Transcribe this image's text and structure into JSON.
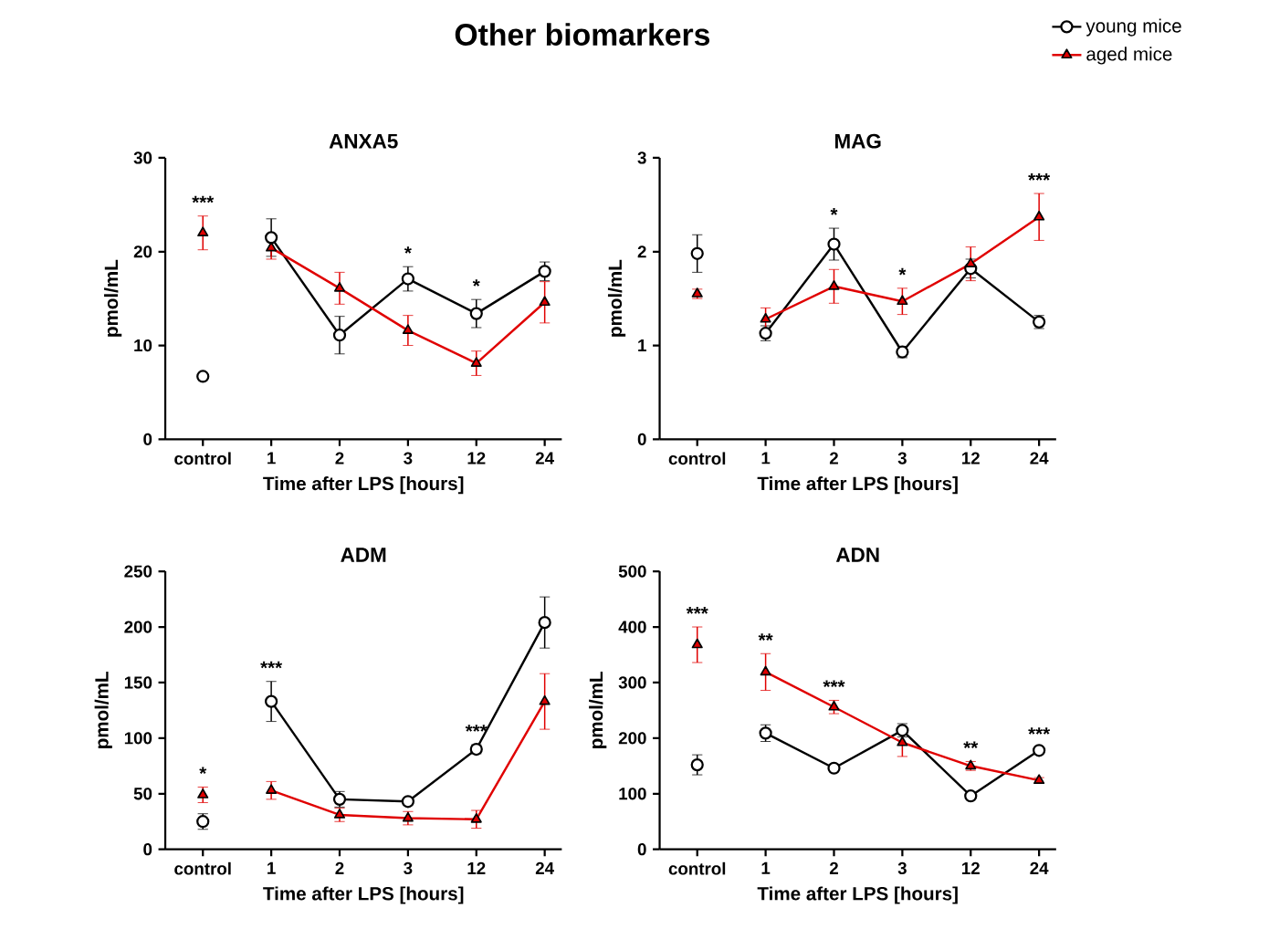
{
  "chart_data": [
    {
      "type": "line",
      "title": "Other biomarkers",
      "subtitle": "ANXA5",
      "xlabel": "Time after LPS [hours]",
      "ylabel": "pmol/mL",
      "categories": [
        "control",
        "1",
        "2",
        "3",
        "12",
        "24"
      ],
      "ylim": [
        0,
        30
      ],
      "yticks": [
        0,
        10,
        20,
        30
      ],
      "legend": "top right",
      "series": [
        {
          "name": "young mice",
          "color": "#000000",
          "marker": "circle",
          "values": [
            null,
            21.5,
            11.1,
            17.1,
            13.4,
            17.9
          ],
          "errors": [
            null,
            2,
            2,
            1.3,
            1.5,
            1
          ]
        },
        {
          "name": "aged mice",
          "color": "#e00000",
          "marker": "triangle",
          "values": [
            null,
            20.4,
            16.1,
            11.6,
            8.1,
            14.6
          ],
          "errors": [
            null,
            1.2,
            1.7,
            1.6,
            1.3,
            2.2
          ]
        },
        {
          "type": "scatter",
          "color": "#000000",
          "marker": "circle",
          "x": [
            "control"
          ],
          "values": [
            6.7
          ]
        },
        {
          "type": "scatter",
          "color": "#e00000",
          "marker": "triangle",
          "x": [
            "control"
          ],
          "values": [
            22
          ],
          "errors": [
            1.8
          ]
        }
      ],
      "annotations": [
        {
          "text": "***",
          "x": "control",
          "y": 22
        },
        {
          "text": "*",
          "x": "3",
          "y": 17.1
        },
        {
          "text": "*",
          "x": "12",
          "y": 13.4
        }
      ]
    },
    {
      "type": "line",
      "title": "MAG",
      "xlabel": "Time after LPS [hours]",
      "ylabel": "pmol/mL",
      "categories": [
        "control",
        "1",
        "2",
        "3",
        "12",
        "24"
      ],
      "ylim": [
        0,
        3
      ],
      "yticks": [
        0,
        1,
        2,
        3
      ],
      "series": [
        {
          "color": "#000000",
          "marker": "circle",
          "values": [
            null,
            1.13,
            2.08,
            0.93,
            1.82,
            1.25
          ],
          "errors": [
            null,
            0.08,
            0.17,
            0.06,
            0.1,
            0.07
          ]
        },
        {
          "color": "#e00000",
          "marker": "triangle",
          "values": [
            null,
            1.28,
            1.63,
            1.47,
            1.87,
            2.37
          ],
          "errors": [
            null,
            0.12,
            0.18,
            0.14,
            0.18,
            0.25
          ]
        },
        {
          "type": "scatter",
          "color": "#000000",
          "marker": "circle",
          "x": [
            "control"
          ],
          "values": [
            1.98
          ],
          "errors": [
            0.2
          ]
        },
        {
          "type": "scatter",
          "color": "#e00000",
          "marker": "triangle",
          "x": [
            "control"
          ],
          "values": [
            1.55
          ],
          "errors": [
            0.05
          ]
        }
      ],
      "annotations": [
        {
          "text": "*",
          "x": "2",
          "y": 2.08
        },
        {
          "text": "*",
          "x": "3",
          "y": 1.47
        },
        {
          "text": "***",
          "x": "24",
          "y": 2.37
        }
      ]
    },
    {
      "type": "line",
      "title": "ADM",
      "xlabel": "Time after LPS [hours]",
      "ylabel": "pmol/mL",
      "categories": [
        "control",
        "1",
        "2",
        "3",
        "12",
        "24"
      ],
      "ylim": [
        0,
        250
      ],
      "yticks": [
        0,
        50,
        100,
        150,
        200,
        250
      ],
      "series": [
        {
          "color": "#000000",
          "marker": "circle",
          "values": [
            null,
            133,
            45,
            43,
            90,
            204
          ],
          "errors": [
            null,
            18,
            7,
            3,
            4,
            23
          ]
        },
        {
          "color": "#e00000",
          "marker": "triangle",
          "values": [
            null,
            53,
            31,
            28,
            27,
            133
          ],
          "errors": [
            null,
            8,
            6,
            6,
            8,
            25
          ]
        },
        {
          "type": "scatter",
          "color": "#000000",
          "marker": "circle",
          "x": [
            "control"
          ],
          "values": [
            25
          ],
          "errors": [
            7
          ]
        },
        {
          "type": "scatter",
          "color": "#e00000",
          "marker": "triangle",
          "x": [
            "control"
          ],
          "values": [
            49
          ],
          "errors": [
            7
          ]
        }
      ],
      "annotations": [
        {
          "text": "*",
          "x": "control",
          "y": 49
        },
        {
          "text": "***",
          "x": "1",
          "y": 133
        },
        {
          "text": "***",
          "x": "12",
          "y": 90
        }
      ]
    },
    {
      "type": "line",
      "title": "ADN",
      "xlabel": "Time after LPS [hours]",
      "ylabel": "pmol/mL",
      "categories": [
        "control",
        "1",
        "2",
        "3",
        "12",
        "24"
      ],
      "ylim": [
        0,
        500
      ],
      "yticks": [
        0,
        100,
        200,
        300,
        400,
        500
      ],
      "series": [
        {
          "color": "#000000",
          "marker": "circle",
          "values": [
            null,
            209,
            146,
            214,
            96,
            178
          ],
          "errors": [
            null,
            15,
            5,
            12,
            5,
            5
          ]
        },
        {
          "color": "#e00000",
          "marker": "triangle",
          "values": [
            null,
            319,
            256,
            192,
            150,
            124
          ],
          "errors": [
            null,
            33,
            12,
            25,
            8,
            5
          ]
        },
        {
          "type": "scatter",
          "color": "#000000",
          "marker": "circle",
          "x": [
            "control"
          ],
          "values": [
            152
          ],
          "errors": [
            18
          ]
        },
        {
          "type": "scatter",
          "color": "#e00000",
          "marker": "triangle",
          "x": [
            "control"
          ],
          "values": [
            368
          ],
          "errors": [
            32
          ]
        }
      ],
      "annotations": [
        {
          "text": "***",
          "x": "control",
          "y": 368
        },
        {
          "text": "**",
          "x": "1",
          "y": 319
        },
        {
          "text": "***",
          "x": "2",
          "y": 256
        },
        {
          "text": "**",
          "x": "12",
          "y": 150
        },
        {
          "text": "***",
          "x": "24",
          "y": 178
        }
      ]
    }
  ]
}
